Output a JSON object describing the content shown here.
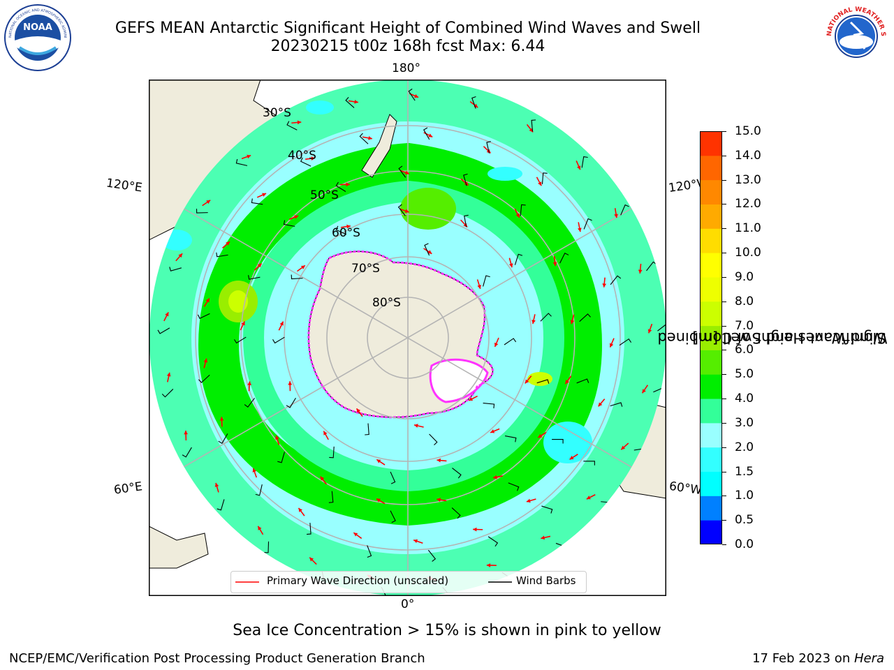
{
  "header": {
    "title_line1": "GEFS MEAN Antarctic Significant Height of Combined Wind Waves and Swell",
    "title_line2": "20230215 t00z 168h fcst   Max: 6.44"
  },
  "logos": {
    "left": {
      "name": "noaa-logo",
      "text": "NOAA",
      "ring_text": "NATIONAL OCEANIC AND ATMOSPHERIC ADMINISTRATION · U.S. DEPARTMENT OF COMMERCE"
    },
    "right": {
      "name": "nws-logo",
      "ring_text": "NATIONAL WEATHER SERVICE"
    }
  },
  "map": {
    "projection": "south-polar-stereographic",
    "lon_labels": {
      "top": "180°",
      "bottom": "0°",
      "left_upper": "120°E",
      "left_lower": "60°E",
      "right_upper": "120°W",
      "right_lower": "60°W"
    },
    "lat_labels": [
      "30°S",
      "40°S",
      "50°S",
      "60°S",
      "70°S",
      "80°S"
    ],
    "colors": {
      "land": "#efecdc",
      "ocean_low": "#99ffff",
      "ocean_mid": "#33ff99",
      "ocean_high": "#00ee00",
      "max_zone": "#ccff00",
      "wave_arrow": "#ff0000",
      "wind_barb": "#000000",
      "ice_edge": "#ff33ff",
      "ice": "#ffffff",
      "grid": "#b4b4b4"
    }
  },
  "colorbar": {
    "title_line1": "Significant Height of Combined",
    "title_line2": "Wind Waves and Swell [m]",
    "ticks": [
      "15.0",
      "14.0",
      "13.0",
      "12.0",
      "11.0",
      "10.0",
      "9.0",
      "8.0",
      "7.0",
      "6.0",
      "5.0",
      "4.0",
      "3.0",
      "2.0",
      "1.5",
      "1.0",
      "0.5",
      "0.0"
    ],
    "colors": [
      "#0000ff",
      "#0080ff",
      "#00ffff",
      "#33ffff",
      "#99ffff",
      "#33ff99",
      "#00ee00",
      "#55ee00",
      "#99ee00",
      "#ccff00",
      "#eeff00",
      "#ffff00",
      "#ffdd00",
      "#ffaa00",
      "#ff8800",
      "#ff6600",
      "#ff3300"
    ]
  },
  "legend": {
    "wave_label": "Primary Wave Direction (unscaled)",
    "wind_label": "Wind Barbs"
  },
  "note": "Sea Ice Concentration > 15% is shown in pink to yellow",
  "footer": {
    "left": "NCEP/EMC/Verification Post Processing Product Generation Branch",
    "date": "17 Feb 2023 on ",
    "machine": "Hera"
  }
}
